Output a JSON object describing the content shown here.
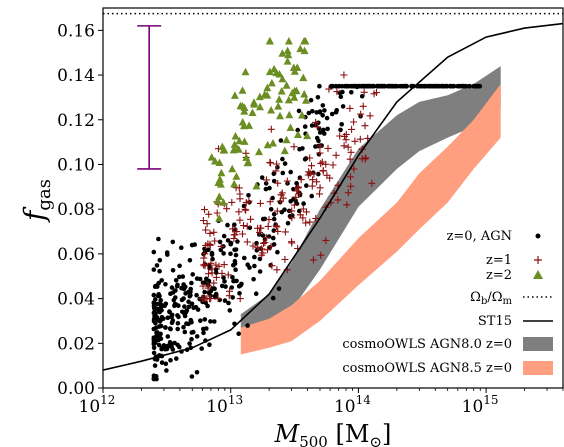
{
  "chart_data": {
    "type": "scatter",
    "title": "",
    "xlabel": "M_500 [M_⊙]",
    "ylabel": "f_gas",
    "xscale": "log",
    "xlim": [
      1000000000000.0,
      4000000000000000.0
    ],
    "ylim": [
      0.0,
      0.17
    ],
    "x_tick_labels": [
      "10^12",
      "10^13",
      "10^14",
      "10^15"
    ],
    "x_ticks": [
      1000000000000.0,
      10000000000000.0,
      100000000000000.0,
      1000000000000000.0
    ],
    "y_ticks": [
      0.0,
      0.02,
      0.04,
      0.06,
      0.08,
      0.1,
      0.12,
      0.14,
      0.16
    ],
    "y_tick_labels": [
      "0.00",
      "0.02",
      "0.04",
      "0.06",
      "0.08",
      "0.10",
      "0.12",
      "0.14",
      "0.16"
    ],
    "grid": false,
    "legend_position": "lower-right",
    "cosmic_baryon_fraction": 0.1675,
    "error_bar": {
      "x": 2300000000000.0,
      "low": 0.098,
      "high": 0.162,
      "color": "#7a007a"
    },
    "series": [
      {
        "name": "z=0, AGN",
        "marker": "circle",
        "color": "#000000",
        "n_points": 560,
        "x_range": [
          2500000000000.0,
          900000000000000.0
        ],
        "y_range": [
          0.004,
          0.135
        ],
        "trend": "f_gas rises with M500"
      },
      {
        "name": "z=1",
        "marker": "plus",
        "color": "#8b1010",
        "n_points": 200,
        "x_range": [
          6000000000000.0,
          140000000000000.0
        ],
        "y_range": [
          0.04,
          0.15
        ]
      },
      {
        "name": "z=2",
        "marker": "triangle",
        "color": "#6b8e23",
        "n_points": 90,
        "x_range": [
          7000000000000.0,
          40000000000000.0
        ],
        "y_range": [
          0.07,
          0.155
        ]
      },
      {
        "name": "Ω_b/Ω_m",
        "style": "dotted",
        "color": "#000000",
        "y": 0.1675
      },
      {
        "name": "ST15",
        "style": "line",
        "color": "#000000",
        "x": [
          1000000000000.0,
          2000000000000.0,
          5000000000000.0,
          10000000000000.0,
          20000000000000.0,
          50000000000000.0,
          100000000000000.0,
          200000000000000.0,
          500000000000000.0,
          1000000000000000.0,
          2000000000000000.0,
          4000000000000000.0
        ],
        "y": [
          0.008,
          0.012,
          0.018,
          0.026,
          0.042,
          0.076,
          0.104,
          0.128,
          0.148,
          0.157,
          0.161,
          0.163
        ]
      },
      {
        "name": "cosmoOWLS AGN8.0 z=0",
        "style": "band",
        "color": "#7f7f7f",
        "x": [
          12000000000000.0,
          20000000000000.0,
          30000000000000.0,
          50000000000000.0,
          100000000000000.0,
          200000000000000.0,
          300000000000000.0,
          500000000000000.0,
          800000000000000.0,
          1300000000000000.0
        ],
        "lower": [
          0.025,
          0.028,
          0.035,
          0.053,
          0.081,
          0.098,
          0.106,
          0.112,
          0.117,
          0.126
        ],
        "upper": [
          0.033,
          0.042,
          0.056,
          0.08,
          0.107,
          0.122,
          0.128,
          0.131,
          0.136,
          0.144
        ]
      },
      {
        "name": "cosmoOWLS AGN8.5 z=0",
        "style": "band",
        "color": "#ff9f7f",
        "x": [
          12000000000000.0,
          20000000000000.0,
          30000000000000.0,
          50000000000000.0,
          100000000000000.0,
          200000000000000.0,
          300000000000000.0,
          500000000000000.0,
          800000000000000.0,
          1300000000000000.0
        ],
        "lower": [
          0.015,
          0.018,
          0.021,
          0.03,
          0.046,
          0.061,
          0.071,
          0.083,
          0.098,
          0.112
        ],
        "upper": [
          0.027,
          0.031,
          0.037,
          0.048,
          0.067,
          0.083,
          0.096,
          0.108,
          0.12,
          0.136
        ]
      }
    ]
  }
}
